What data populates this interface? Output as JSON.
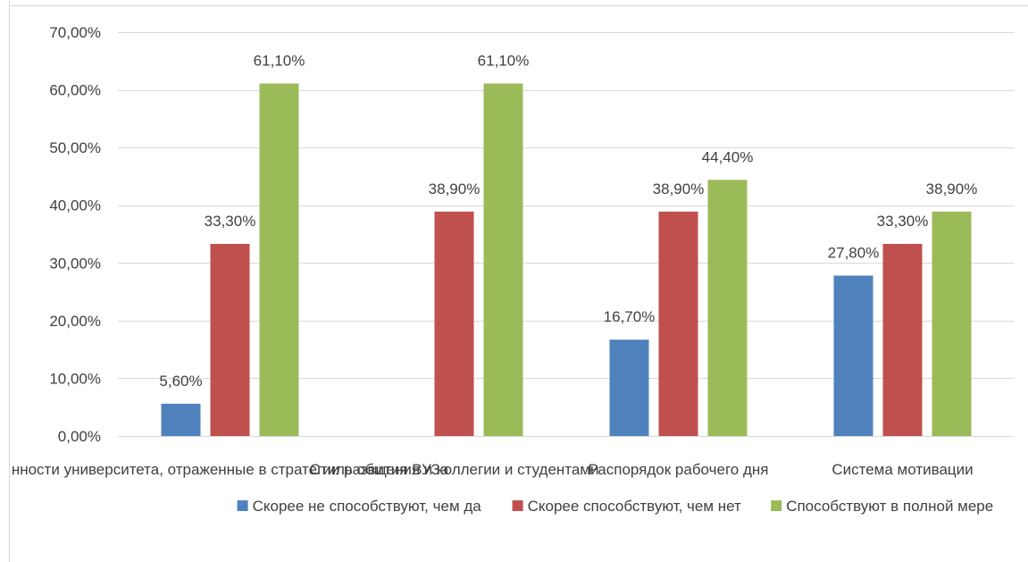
{
  "chart_data": {
    "type": "bar",
    "categories": [
      "нности университета, отраженные в стратегии развития ВУЗа",
      "Стиль общения и коллегии и студентами",
      "Распорядок рабочего дня",
      "Система мотивации"
    ],
    "series": [
      {
        "name": "Скорее не способствуют, чем да",
        "color": "#4f81bd",
        "values": [
          5.6,
          null,
          16.7,
          27.8
        ],
        "labels": [
          "5,60%",
          "",
          "16,70%",
          "27,80%"
        ]
      },
      {
        "name": "Скорее способствуют, чем нет",
        "color": "#c0504d",
        "values": [
          33.3,
          38.9,
          38.9,
          33.3
        ],
        "labels": [
          "33,30%",
          "38,90%",
          "38,90%",
          "33,30%"
        ]
      },
      {
        "name": "Способствуют в полной мере",
        "color": "#9bbb59",
        "values": [
          61.1,
          61.1,
          44.4,
          38.9
        ],
        "labels": [
          "61,10%",
          "61,10%",
          "44,40%",
          "38,90%"
        ]
      }
    ],
    "ylim": [
      0,
      70
    ],
    "y_ticks": [
      0,
      10,
      20,
      30,
      40,
      50,
      60,
      70
    ],
    "y_tick_labels": [
      "0,00%",
      "10,00%",
      "20,00%",
      "30,00%",
      "40,00%",
      "50,00%",
      "60,00%",
      "70,00%"
    ],
    "grid": true,
    "legend_position": "bottom",
    "title": "",
    "xlabel": "",
    "ylabel": ""
  }
}
